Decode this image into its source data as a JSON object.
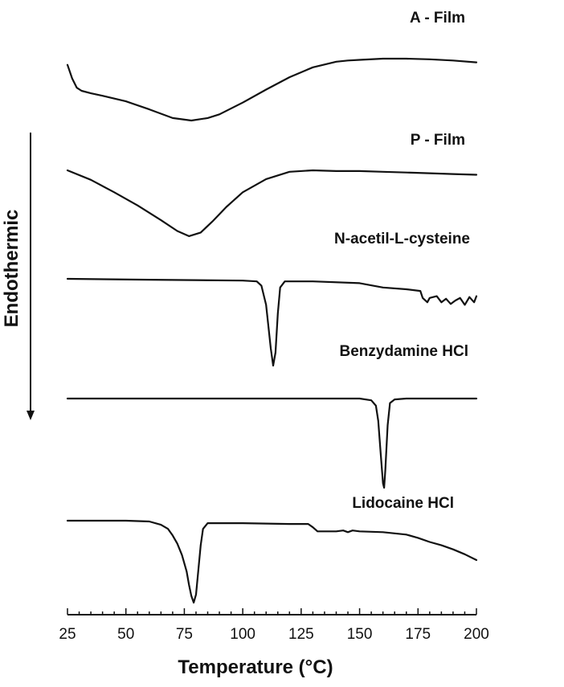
{
  "chart_data": {
    "type": "line",
    "title": "",
    "xlabel": "Temperature (°C)",
    "ylabel": "Endothermic",
    "xlim": [
      25,
      200
    ],
    "xticks": [
      25,
      50,
      75,
      100,
      125,
      150,
      175,
      200
    ],
    "y_units": "arbitrary (stacked, offset curves)",
    "grid": false,
    "legend": "none (curves labelled directly)",
    "series": [
      {
        "name": "A - Film",
        "x": [
          25,
          27,
          29,
          31,
          35,
          40,
          50,
          60,
          70,
          78,
          85,
          90,
          100,
          110,
          120,
          130,
          140,
          145,
          150,
          160,
          170,
          180,
          190,
          200
        ],
        "y": [
          -0.1,
          -0.32,
          -0.47,
          -0.52,
          -0.56,
          -0.6,
          -0.69,
          -0.82,
          -0.96,
          -1.0,
          -0.96,
          -0.9,
          -0.71,
          -0.5,
          -0.3,
          -0.14,
          -0.05,
          -0.03,
          -0.02,
          0.0,
          0.0,
          -0.01,
          -0.03,
          -0.06
        ]
      },
      {
        "name": "P - Film",
        "x": [
          25,
          35,
          45,
          55,
          65,
          72,
          77,
          82,
          87,
          93,
          100,
          110,
          120,
          130,
          140,
          150,
          160,
          170,
          180,
          190,
          200
        ],
        "y": [
          0.0,
          -0.13,
          -0.3,
          -0.48,
          -0.68,
          -0.83,
          -0.9,
          -0.85,
          -0.7,
          -0.5,
          -0.3,
          -0.12,
          -0.02,
          0.0,
          -0.01,
          -0.01,
          -0.02,
          -0.03,
          -0.04,
          -0.05,
          -0.06
        ]
      },
      {
        "name": "N-acetil-L-cysteine",
        "x": [
          25,
          60,
          100,
          106,
          108,
          110,
          111,
          112,
          113,
          114,
          115,
          116,
          118,
          120,
          130,
          150,
          160,
          170,
          176,
          177,
          179,
          180,
          183,
          185,
          187,
          189,
          191,
          193,
          195,
          197,
          199,
          200
        ],
        "y": [
          0.0,
          -0.01,
          -0.02,
          -0.03,
          -0.08,
          -0.3,
          -0.55,
          -0.8,
          -1.0,
          -0.85,
          -0.4,
          -0.1,
          -0.03,
          -0.03,
          -0.03,
          -0.05,
          -0.1,
          -0.12,
          -0.14,
          -0.22,
          -0.27,
          -0.22,
          -0.2,
          -0.27,
          -0.23,
          -0.29,
          -0.25,
          -0.22,
          -0.3,
          -0.21,
          -0.27,
          -0.2
        ]
      },
      {
        "name": "Benzydamine HCl",
        "x": [
          25,
          50,
          100,
          150,
          155,
          157,
          158,
          159,
          160,
          160.5,
          161,
          162,
          163,
          165,
          170,
          200
        ],
        "y": [
          0.0,
          0.0,
          0.0,
          0.0,
          -0.02,
          -0.08,
          -0.25,
          -0.6,
          -0.95,
          -1.0,
          -0.8,
          -0.3,
          -0.05,
          -0.01,
          0.0,
          0.0
        ]
      },
      {
        "name": "Lidocaine HCl",
        "x": [
          25,
          50,
          60,
          65,
          68,
          70,
          72,
          74,
          76,
          77,
          78,
          79,
          80,
          81,
          82,
          83,
          85,
          90,
          100,
          120,
          128,
          130,
          132,
          140,
          143,
          145,
          147,
          150,
          160,
          170,
          175,
          180,
          185,
          190,
          195,
          200
        ],
        "y": [
          0.0,
          0.0,
          -0.01,
          -0.05,
          -0.1,
          -0.18,
          -0.28,
          -0.42,
          -0.62,
          -0.78,
          -0.92,
          -1.0,
          -0.9,
          -0.6,
          -0.3,
          -0.1,
          -0.03,
          -0.03,
          -0.03,
          -0.04,
          -0.04,
          -0.08,
          -0.13,
          -0.13,
          -0.12,
          -0.14,
          -0.12,
          -0.13,
          -0.14,
          -0.17,
          -0.21,
          -0.26,
          -0.3,
          -0.35,
          -0.41,
          -0.48
        ]
      }
    ]
  }
}
